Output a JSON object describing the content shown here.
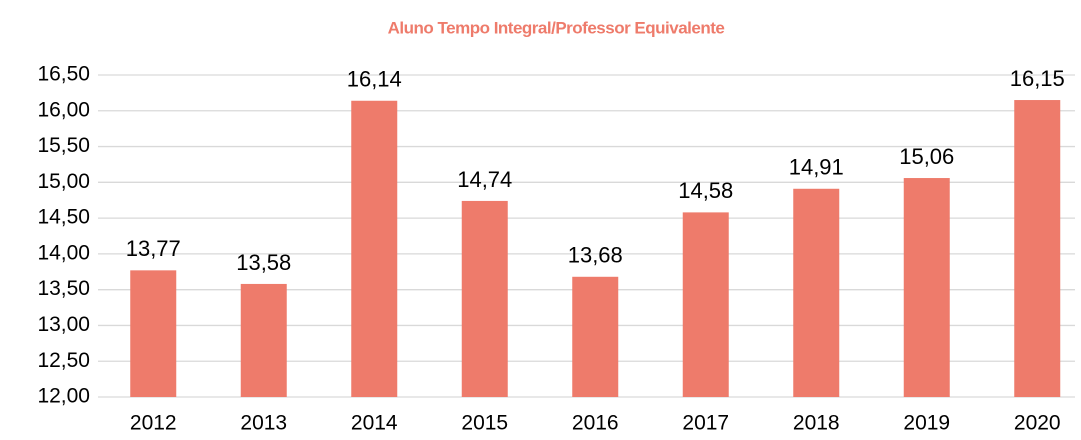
{
  "chart_data": {
    "type": "bar",
    "title": "Aluno Tempo Integral/Professor Equivalente",
    "categories": [
      "2012",
      "2013",
      "2014",
      "2015",
      "2016",
      "2017",
      "2018",
      "2019",
      "2020"
    ],
    "values": [
      13.77,
      13.58,
      16.14,
      14.74,
      13.68,
      14.58,
      14.91,
      15.06,
      16.15
    ],
    "value_labels": [
      "13,77",
      "13,58",
      "16,14",
      "14,74",
      "13,68",
      "14,58",
      "14,91",
      "15,06",
      "16,15"
    ],
    "color": "#ee7b6b",
    "ylim": [
      12,
      16.5
    ],
    "yticks": [
      {
        "value": 12,
        "label": "12,00"
      },
      {
        "value": 12.5,
        "label": "12,50"
      },
      {
        "value": 13,
        "label": "13,00"
      },
      {
        "value": 13.5,
        "label": "13,50"
      },
      {
        "value": 14,
        "label": "14,00"
      },
      {
        "value": 14.5,
        "label": "14,50"
      },
      {
        "value": 15,
        "label": "15,00"
      },
      {
        "value": 15.5,
        "label": "15,50"
      },
      {
        "value": 16,
        "label": "16,00"
      },
      {
        "value": 16.5,
        "label": "16,50"
      }
    ],
    "grid": true
  }
}
